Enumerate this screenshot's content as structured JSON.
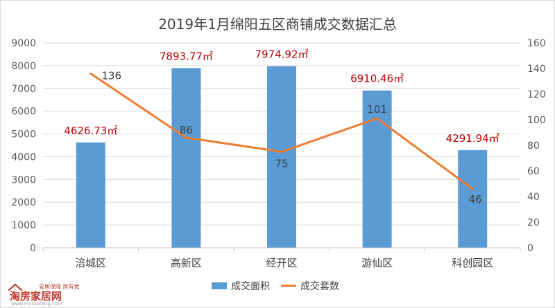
{
  "chart_data": {
    "type": "bar+line",
    "title": "2019年1月绵阳五区商铺成交数据汇总",
    "categories": [
      "涪城区",
      "高新区",
      "经开区",
      "游仙区",
      "科创园区"
    ],
    "series": [
      {
        "name": "成交面积",
        "type": "bar",
        "axis": "left",
        "values": [
          4626.73,
          7893.77,
          7974.92,
          6910.46,
          4291.94
        ],
        "labels": [
          "4626.73㎡",
          "7893.77㎡",
          "7974.92㎡",
          "6910.46㎡",
          "4291.94㎡"
        ],
        "color": "#5b9bd5"
      },
      {
        "name": "成交套数",
        "type": "line",
        "axis": "right",
        "values": [
          136,
          86,
          75,
          101,
          46
        ],
        "labels": [
          "136",
          "86",
          "75",
          "101",
          "46"
        ],
        "color": "#ed7d31"
      }
    ],
    "y_left": {
      "min": 0,
      "max": 9000,
      "ticks": [
        "0",
        "1000",
        "2000",
        "3000",
        "4000",
        "5000",
        "6000",
        "7000",
        "8000",
        "9000"
      ]
    },
    "y_right": {
      "min": 0,
      "max": 160,
      "ticks": [
        "0",
        "20",
        "40",
        "60",
        "80",
        "100",
        "120",
        "140",
        "160"
      ]
    },
    "grid": true,
    "legend": "bottom"
  },
  "watermark": {
    "brand": "淘房家居网",
    "slogan": "安居保障 房有忧",
    "url": "www.mytaofang.com"
  }
}
